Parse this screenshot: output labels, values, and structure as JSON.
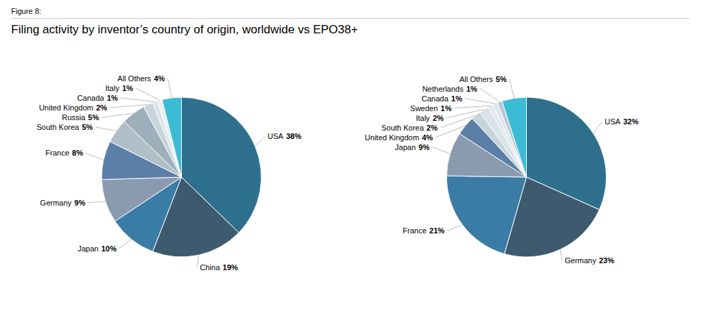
{
  "title": "Filing activity by inventor’s country of origin, worldwide vs EPO38+",
  "annotations": [
    "Figure 8:"
  ],
  "chart_data": [
    {
      "type": "pie",
      "categories": [
        "USA",
        "China",
        "Japan",
        "Germany",
        "France",
        "South Korea",
        "Russia",
        "United Kingdom",
        "Canada",
        "Italy",
        "All Others"
      ],
      "values": [
        38,
        19,
        10,
        9,
        8,
        5,
        5,
        2,
        1,
        1,
        4
      ],
      "value_labels": [
        "38%",
        "19%",
        "10%",
        "9%",
        "8%",
        "5%",
        "5%",
        "2%",
        "1%",
        "1%",
        "4%"
      ],
      "colors": [
        "#2e6f8e",
        "#3d5a6e",
        "#3a7ca5",
        "#8a9bb0",
        "#5b7fa6",
        "#b0bec8",
        "#9eafbc",
        "#c8d4db",
        "#d8e2e8",
        "#e8eef2",
        "#3bbcd4"
      ],
      "data_labels": true
    },
    {
      "type": "pie",
      "categories": [
        "USA",
        "Germany",
        "France",
        "Japan",
        "United Kingdom",
        "South Korea",
        "Italy",
        "Sweden",
        "Canada",
        "Netherlands",
        "All Others"
      ],
      "values": [
        32,
        23,
        21,
        9,
        4,
        2,
        2,
        1,
        1,
        1,
        5
      ],
      "value_labels": [
        "32%",
        "23%",
        "21%",
        "9%",
        "4%",
        "2%",
        "2%",
        "1%",
        "1%",
        "1%",
        "5%"
      ],
      "colors": [
        "#2e6f8e",
        "#3d5a6e",
        "#3a7ca5",
        "#8a9bb0",
        "#5b7fa6",
        "#c8d4db",
        "#d8e2e8",
        "#e0e8ee",
        "#dce6ec",
        "#b8c8d4",
        "#3bbcd4"
      ],
      "data_labels": true
    }
  ]
}
